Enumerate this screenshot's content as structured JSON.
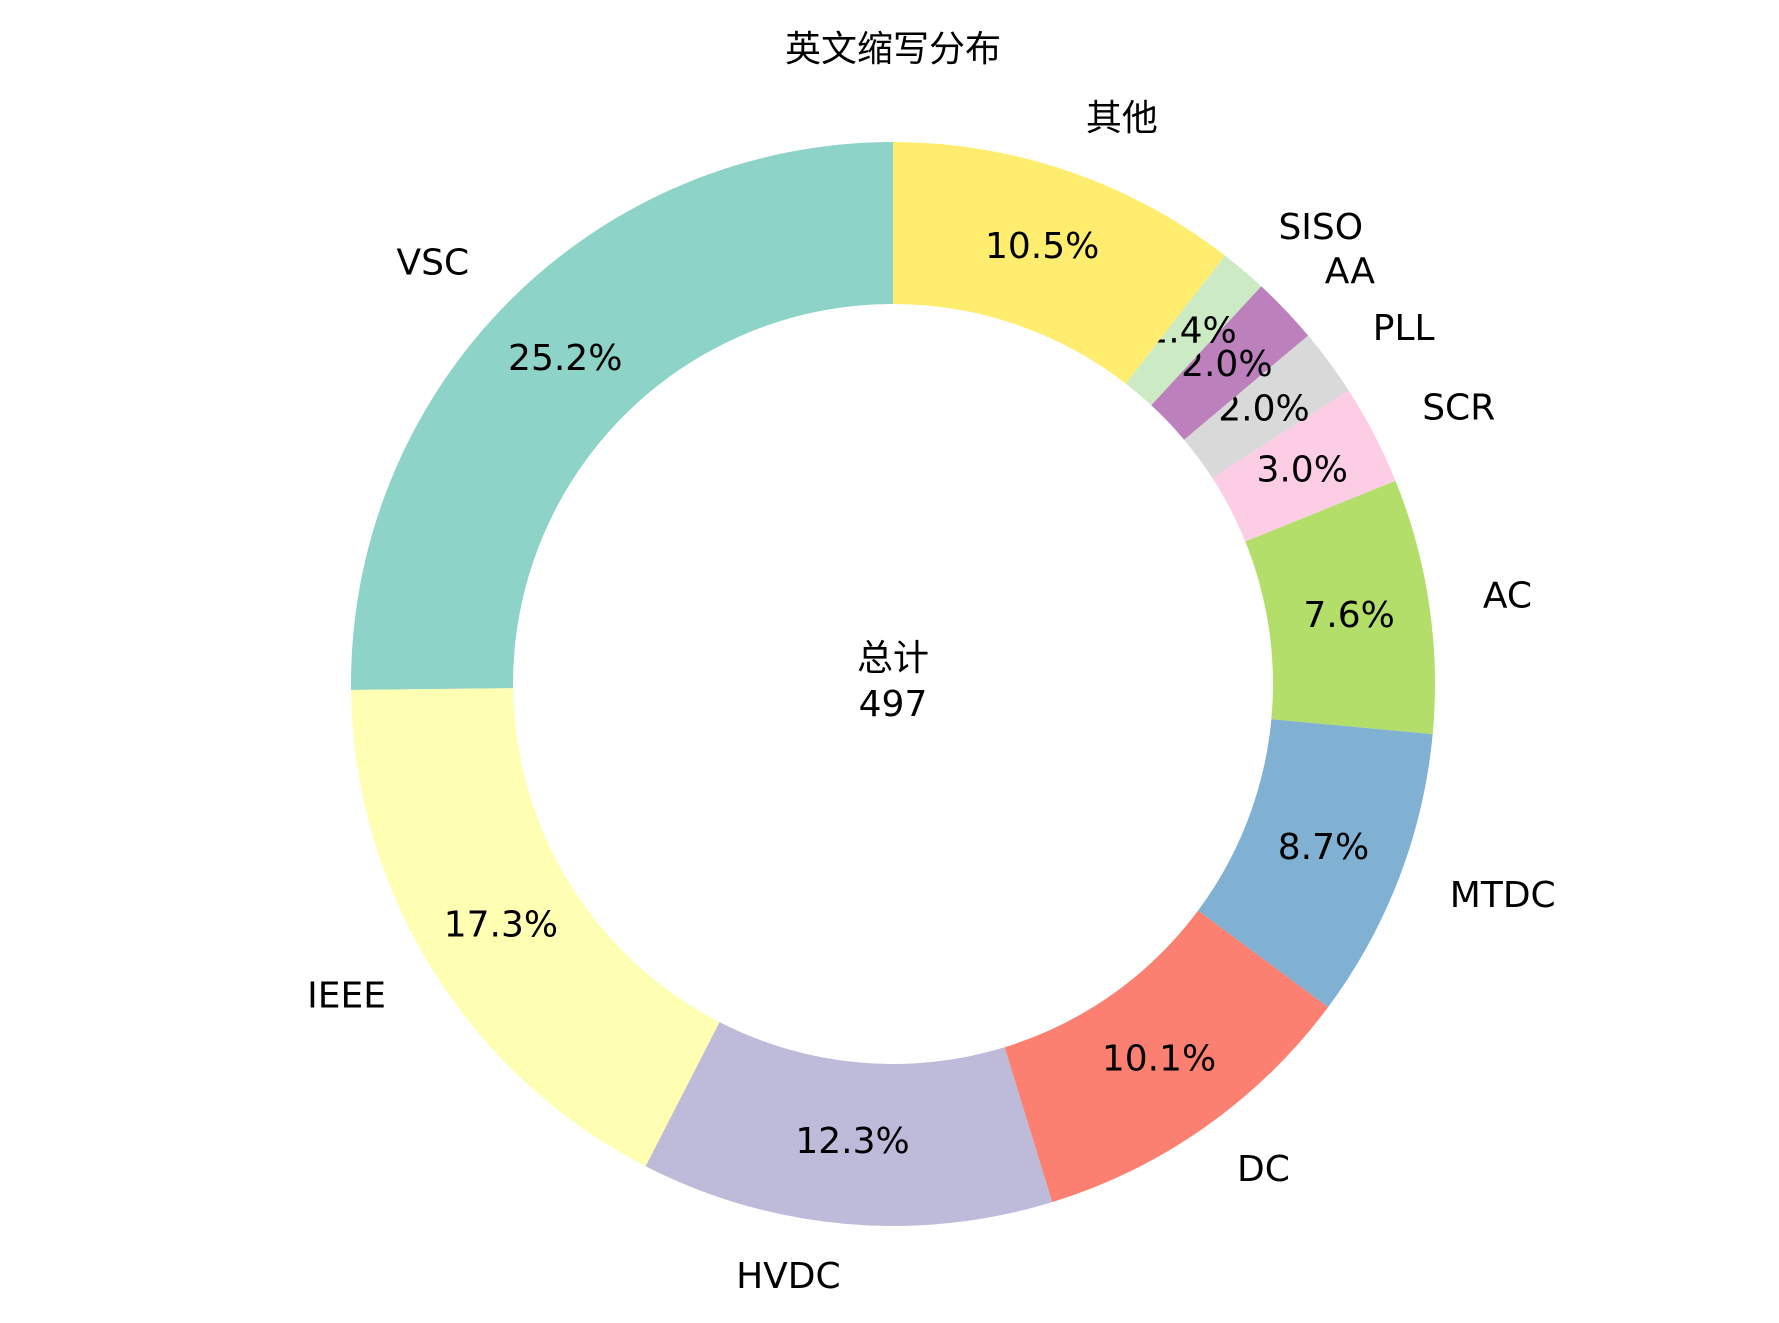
{
  "chart_data": {
    "type": "donut",
    "title": "英文缩写分布",
    "categories": [
      "VSC",
      "IEEE",
      "HVDC",
      "DC",
      "MTDC",
      "AC",
      "SCR",
      "PLL",
      "AA",
      "SISO",
      "其他"
    ],
    "values": [
      25.2,
      17.3,
      12.3,
      10.1,
      8.7,
      7.6,
      3.0,
      2.0,
      2.0,
      1.4,
      10.5
    ],
    "value_labels": [
      "25.2%",
      "17.3%",
      "12.3%",
      "10.1%",
      "8.7%",
      "7.6%",
      "3.0%",
      "2.0%",
      "2.0%",
      "1.4%",
      "10.5%"
    ],
    "colors": [
      "#8dd3c7",
      "#ffffb3",
      "#bebada",
      "#fb8072",
      "#80b1d3",
      "#b3de69",
      "#fccde5",
      "#d9d9d9",
      "#bc80bd",
      "#ccebc5",
      "#ffed6f"
    ],
    "center_label": "总计",
    "total": 497
  }
}
